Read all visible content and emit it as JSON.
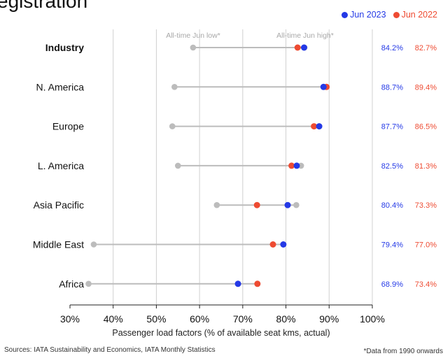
{
  "page": {
    "title_fragment": "egistration",
    "sources": "Sources: IATA Sustainability and Economics, IATA Monthly Statistics",
    "footnote": "*Data from 1990 onwards"
  },
  "colors": {
    "jun2023": "#2439e6",
    "jun2022": "#ee4b32",
    "historic": "#bcbcbc",
    "grid": "#d0d0d0"
  },
  "chart_data": {
    "type": "scatter",
    "xlabel": "Passenger load factors (% of available seat kms, actual)",
    "xlim": [
      30,
      100
    ],
    "xticks": [
      30,
      40,
      50,
      60,
      70,
      80,
      90,
      100
    ],
    "xtick_labels": [
      "30%",
      "40%",
      "50%",
      "60%",
      "70%",
      "80%",
      "90%",
      "100%"
    ],
    "legend": [
      {
        "name": "Jun 2023",
        "color": "#2439e6"
      },
      {
        "name": "Jun 2022",
        "color": "#ee4b32"
      }
    ],
    "legend_position": "top-right",
    "annotations": {
      "low_label": "All-time Jun low*",
      "high_label": "All-time Jun high*"
    },
    "categories": [
      "Industry",
      "N. America",
      "Europe",
      "L. America",
      "Asia Pacific",
      "Middle East",
      "Africa"
    ],
    "bold_categories": [
      "Industry"
    ],
    "series": [
      {
        "name": "Jun 2023",
        "values": [
          84.2,
          88.7,
          87.7,
          82.5,
          80.4,
          79.4,
          68.9
        ],
        "labels": [
          "84.2%",
          "88.7%",
          "87.7%",
          "82.5%",
          "80.4%",
          "79.4%",
          "68.9%"
        ]
      },
      {
        "name": "Jun 2022",
        "values": [
          82.7,
          89.4,
          86.5,
          81.3,
          73.3,
          77.0,
          73.4
        ],
        "labels": [
          "82.7%",
          "89.4%",
          "86.5%",
          "81.3%",
          "73.3%",
          "77.0%",
          "73.4%"
        ]
      }
    ],
    "all_time_low": [
      58.5,
      54.2,
      53.7,
      55.0,
      64.0,
      35.5,
      34.3
    ],
    "all_time_high": [
      84.3,
      89.4,
      87.7,
      83.5,
      82.4,
      79.4,
      73.4
    ],
    "grid": true
  }
}
